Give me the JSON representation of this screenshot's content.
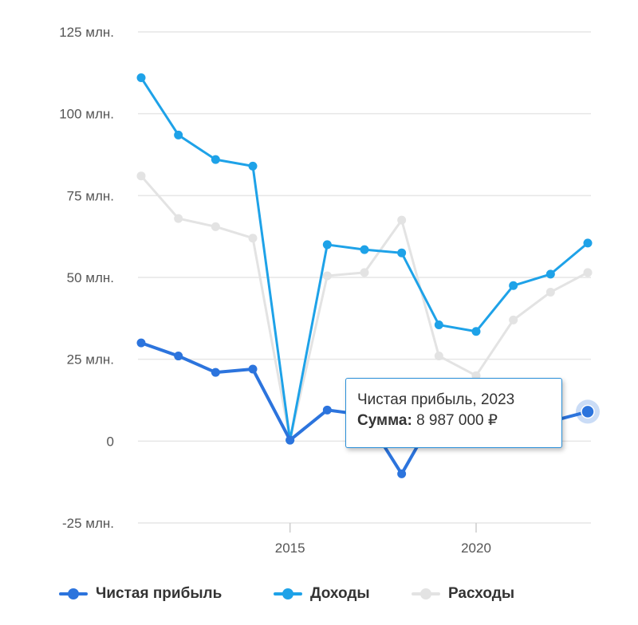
{
  "chart_data": {
    "type": "line",
    "x": [
      2011,
      2012,
      2013,
      2014,
      2015,
      2016,
      2017,
      2018,
      2019,
      2020,
      2021,
      2022,
      2023
    ],
    "xlim": [
      2011,
      2023
    ],
    "x_ticks": [
      2015,
      2020
    ],
    "x_tick_labels": [
      "2015",
      "2020"
    ],
    "ylim": [
      -25000000,
      125000000
    ],
    "y_ticks": [
      -25000000,
      0,
      25000000,
      50000000,
      75000000,
      100000000,
      125000000
    ],
    "y_tick_labels": [
      "-25 млн.",
      "0",
      "25 млн.",
      "50 млн.",
      "75 млн.",
      "100 млн.",
      "125 млн."
    ],
    "grid": true,
    "legend_position": "bottom",
    "series": [
      {
        "name": "Чистая прибыль",
        "color": "#2c74dd",
        "values": [
          30000000,
          26000000,
          21000000,
          22000000,
          300000,
          9500000,
          8000000,
          -10000000,
          10000000,
          14000000,
          9000000,
          6000000,
          8987000
        ]
      },
      {
        "name": "Доходы",
        "color": "#1ea2e8",
        "values": [
          111000000,
          93500000,
          86000000,
          84000000,
          300000,
          60000000,
          58500000,
          57500000,
          35500000,
          33500000,
          47500000,
          51000000,
          60500000
        ]
      },
      {
        "name": "Расходы",
        "color": "#e3e3e3",
        "values": [
          81000000,
          68000000,
          65500000,
          62000000,
          300000,
          50500000,
          51500000,
          67500000,
          26000000,
          20000000,
          37000000,
          45500000,
          51500000
        ]
      }
    ],
    "highlight": {
      "series": 0,
      "index": 12
    },
    "tooltip": {
      "title": "Чистая прибыль, 2023",
      "key": "Сумма:",
      "value": "8 987 000 ₽"
    }
  }
}
